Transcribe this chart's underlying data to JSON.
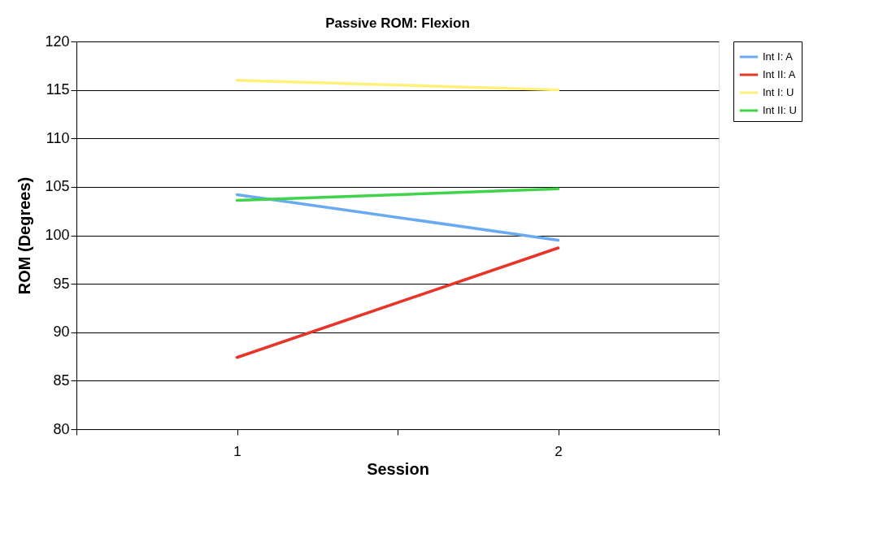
{
  "chart_data": {
    "type": "line",
    "title": "Passive ROM: Flexion",
    "xlabel": "Session",
    "ylabel": "ROM (Degrees)",
    "x": [
      1,
      2
    ],
    "series": [
      {
        "name": "Int I: A",
        "color": "#6aaaf0",
        "values": [
          104.2,
          99.5
        ]
      },
      {
        "name": "Int II: A",
        "color": "#e8352a",
        "values": [
          87.4,
          98.7
        ]
      },
      {
        "name": "Int I: U",
        "color": "#fff07a",
        "values": [
          116,
          115
        ]
      },
      {
        "name": "Int II: U",
        "color": "#3fd44a",
        "values": [
          103.6,
          104.8
        ]
      }
    ],
    "xlim": [
      0.5,
      2.5
    ],
    "xticks": [
      {
        "value": 0.5,
        "label": null
      },
      1,
      {
        "value": 1.5,
        "label": null
      },
      2,
      {
        "value": 2.5,
        "label": null
      }
    ],
    "ylim": [
      80,
      120
    ],
    "yticks": [
      80,
      85,
      90,
      95,
      100,
      105,
      110,
      115,
      120
    ],
    "grid": "y",
    "legend": "right",
    "marker": "none",
    "line_style": "solid"
  }
}
